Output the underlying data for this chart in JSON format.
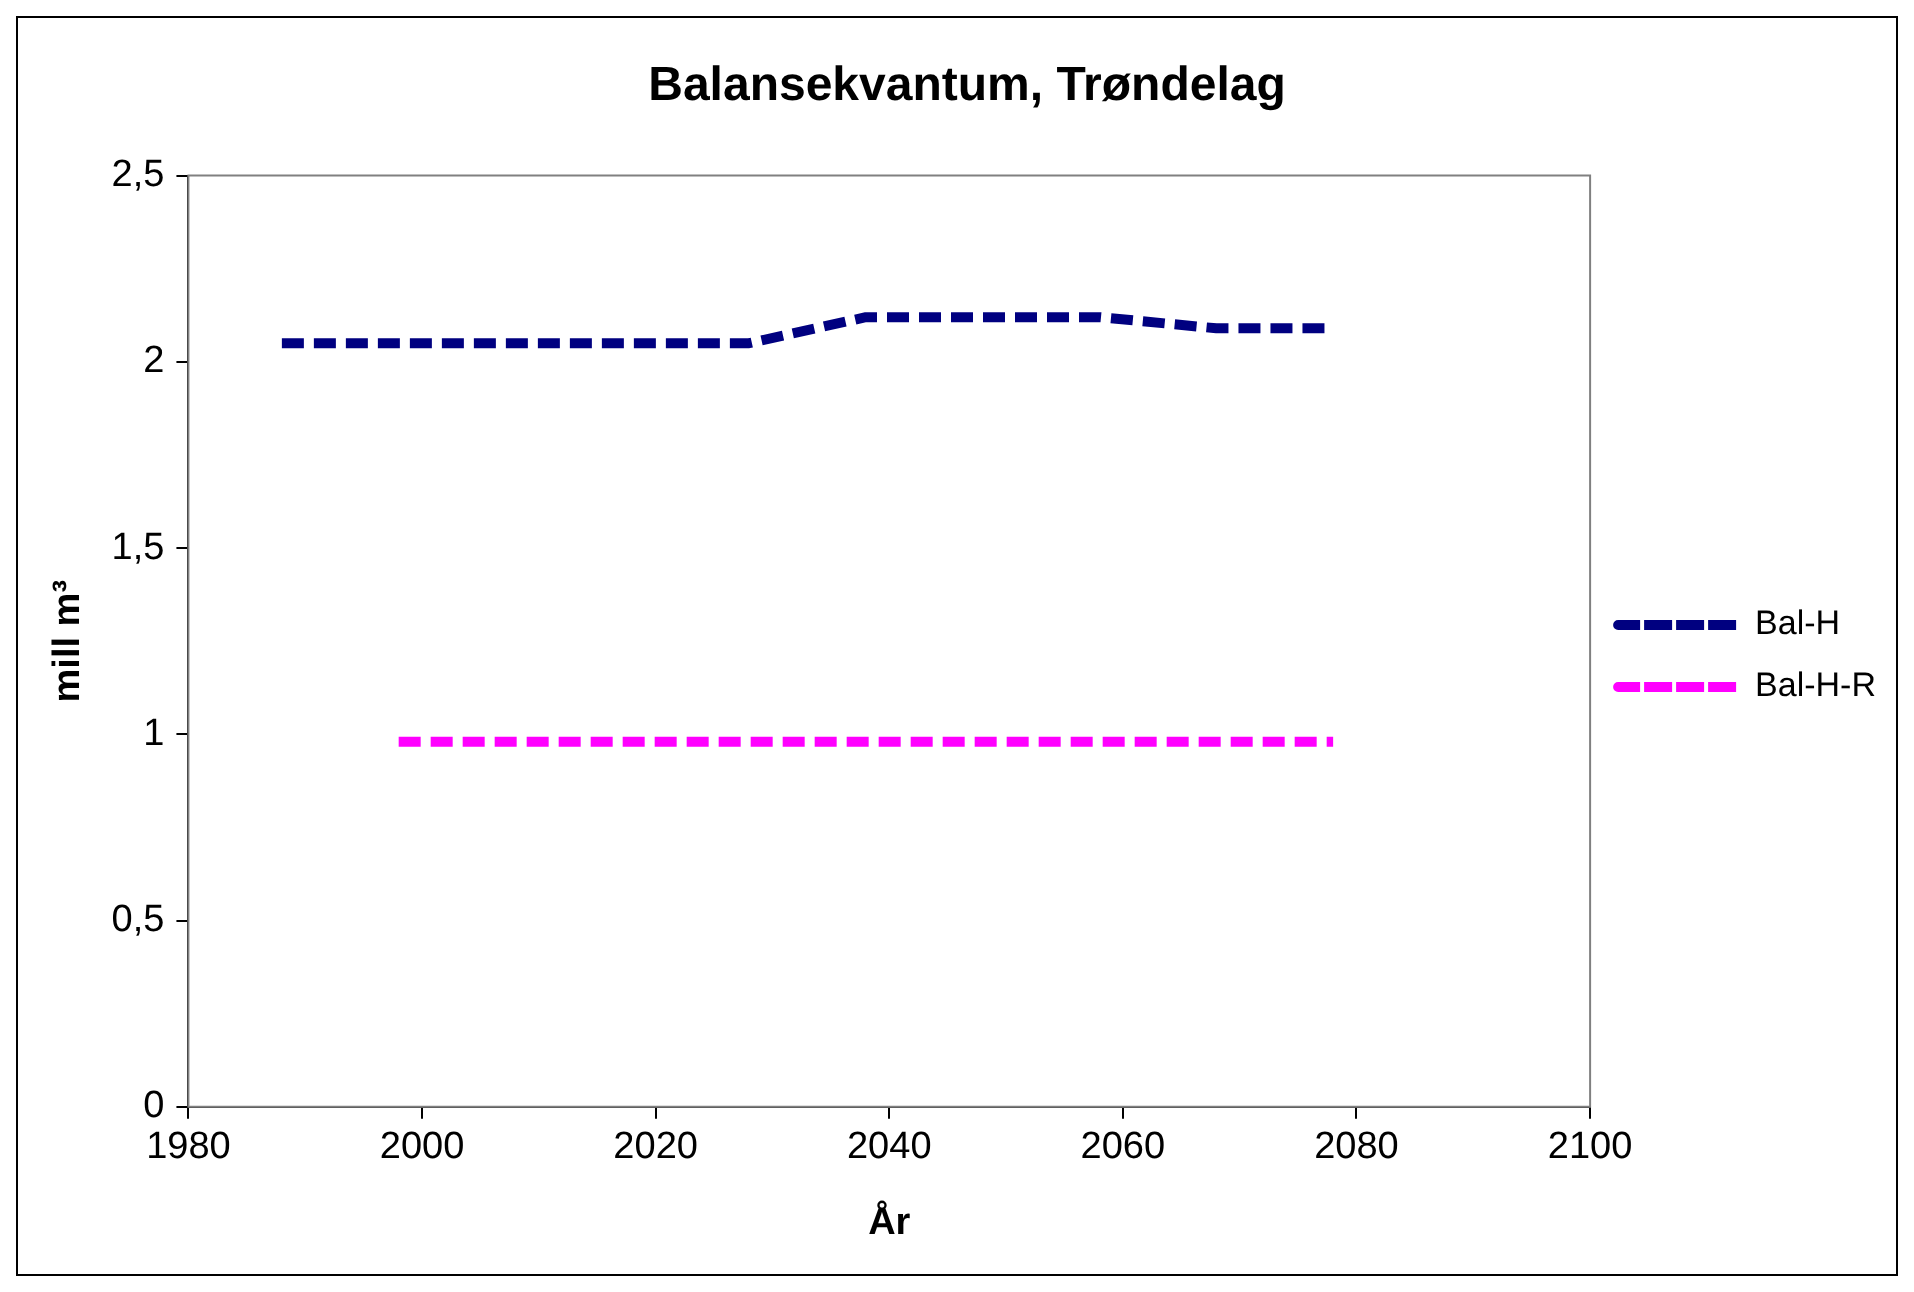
{
  "chart_data": {
    "type": "line",
    "title": "Balansekvantum, Trøndelag",
    "xlabel": "År",
    "ylabel": "mill m³",
    "x": [
      1988,
      1998,
      2008,
      2018,
      2028,
      2038,
      2048,
      2058,
      2068,
      2078
    ],
    "series": [
      {
        "name": "Bal-H",
        "color": "#000080",
        "values": [
          2.05,
          2.05,
          2.05,
          2.05,
          2.05,
          2.12,
          2.12,
          2.12,
          2.09,
          2.09
        ]
      },
      {
        "name": "Bal-H-R",
        "color": "#ff00ff",
        "values": [
          null,
          0.98,
          0.98,
          0.98,
          0.98,
          0.98,
          0.98,
          0.98,
          0.98,
          0.98
        ]
      }
    ],
    "xlim": [
      1980,
      2100
    ],
    "xticks": [
      1980,
      2000,
      2020,
      2040,
      2060,
      2080,
      2100
    ],
    "ylim": [
      0,
      2.5
    ],
    "yticks": [
      0,
      {
        "value": 0.5,
        "label": "0,5"
      },
      1,
      {
        "value": 1.5,
        "label": "1,5"
      },
      2,
      {
        "value": 2.5,
        "label": "2,5"
      }
    ],
    "grid": false,
    "legend": "right",
    "marker": "none",
    "line_style": "dashed"
  }
}
